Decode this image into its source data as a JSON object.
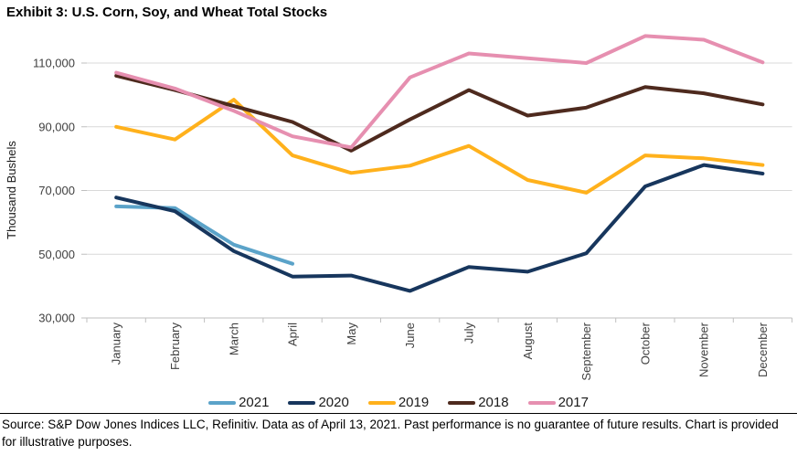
{
  "title": "Exhibit 3: U.S. Corn, Soy, and Wheat Total Stocks",
  "footer": "Source: S&P Dow Jones Indices LLC, Refinitiv. Data as of April 13, 2021. Past performance is no guarantee of future results. Chart is provided for illustrative purposes.",
  "chart_data": {
    "type": "line",
    "title": "Exhibit 3: U.S. Corn, Soy, and Wheat Total Stocks",
    "ylabel": "Thousand Bushels",
    "xlabel": "",
    "categories": [
      "January",
      "February",
      "March",
      "April",
      "May",
      "June",
      "July",
      "August",
      "September",
      "October",
      "November",
      "December"
    ],
    "yticks": [
      30000,
      50000,
      70000,
      90000,
      110000
    ],
    "ytick_labels": [
      "30,000",
      "50,000",
      "70,000",
      "90,000",
      "110,000"
    ],
    "ylim": [
      30000,
      121000
    ],
    "grid": "horizontal",
    "legend_position": "bottom",
    "axis_color": "#bfbfbf",
    "grid_color": "#d9d9d9",
    "tick_label_color": "#404040",
    "series": [
      {
        "name": "2021",
        "color": "#5ba3c9",
        "values": [
          65000,
          64500,
          53000,
          47000,
          null,
          null,
          null,
          null,
          null,
          null,
          null,
          null
        ]
      },
      {
        "name": "2020",
        "color": "#17365d",
        "values": [
          67800,
          63500,
          51000,
          43000,
          43300,
          38500,
          46000,
          44500,
          50300,
          71300,
          78000,
          75300
        ]
      },
      {
        "name": "2019",
        "color": "#ffb11c",
        "values": [
          90000,
          86000,
          98500,
          81000,
          75500,
          77800,
          84000,
          73300,
          69300,
          81000,
          80100,
          78000
        ]
      },
      {
        "name": "2018",
        "color": "#4e2a1e",
        "values": [
          106000,
          101500,
          96500,
          91500,
          82500,
          92300,
          101500,
          93500,
          96000,
          102500,
          100500,
          97000
        ]
      },
      {
        "name": "2017",
        "color": "#e68fb0",
        "values": [
          107000,
          102000,
          95000,
          87000,
          83500,
          105500,
          113000,
          111500,
          110000,
          118500,
          117300,
          110200
        ]
      }
    ]
  }
}
